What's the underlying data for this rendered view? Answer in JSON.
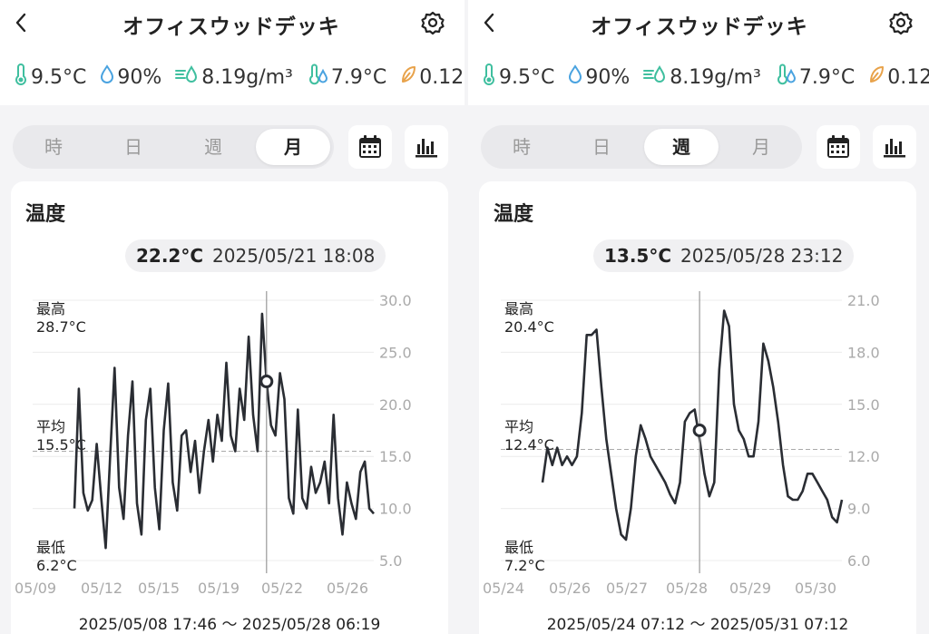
{
  "colors": {
    "accent": "#222222",
    "temp_icon": "#3fbf9f",
    "humidity_icon": "#4aa3e0",
    "vpd_icon": "#3fbf9f",
    "leaf_icon": "#e8a24a"
  },
  "panels": [
    {
      "header": {
        "back_icon": "chevron-left-icon",
        "title": "オフィスウッドデッキ",
        "settings_icon": "gear-icon"
      },
      "metrics": [
        {
          "icon": "thermometer-icon",
          "value": "9.5°C"
        },
        {
          "icon": "humidity-drop-icon",
          "value": "90%"
        },
        {
          "icon": "absolute-humidity-icon",
          "value": "8.19g/m³"
        },
        {
          "icon": "dew-point-icon",
          "value": "7.9°C"
        },
        {
          "icon": "leaf-icon",
          "value": "0.12"
        }
      ],
      "tabs": [
        {
          "label": "時"
        },
        {
          "label": "日"
        },
        {
          "label": "週"
        },
        {
          "label": "月"
        }
      ],
      "active_tab": 3,
      "calendar_icon": "calendar-icon",
      "stats_icon": "bar-chart-icon",
      "card": {
        "title": "温度",
        "tooltip": {
          "value": "22.2°C",
          "time": "2025/05/21 18:08"
        },
        "range_text": "2025/05/08 17:46 〜 2025/05/28 06:19",
        "max_label": "最高",
        "max_value": "28.7°C",
        "avg_label": "平均",
        "avg_value": "15.5°C",
        "min_label": "最低",
        "min_value": "6.2°C"
      },
      "chart_data": {
        "type": "line",
        "x_start": "2025/05/08 17:46",
        "x_end": "2025/05/28 06:19",
        "ylim": [
          5.0,
          30.0
        ],
        "yticks": [
          "30.0",
          "25.0",
          "20.0",
          "15.0",
          "10.0",
          "5.0"
        ],
        "xticks": [
          "05/09",
          "05/12",
          "05/15",
          "05/19",
          "05/22",
          "05/26"
        ],
        "max": 28.7,
        "avg": 15.5,
        "min": 6.2,
        "cursor": {
          "time": "2025/05/21 18:08",
          "value": 22.2
        },
        "series": [
          {
            "values": [
              10.0,
              21.5,
              11.5,
              9.8,
              10.8,
              16.2,
              11.0,
              6.2,
              15.0,
              23.5,
              12.0,
              9.0,
              17.0,
              22.2,
              10.5,
              7.5,
              18.5,
              21.5,
              12.0,
              8.0,
              17.5,
              22.0,
              12.5,
              9.8,
              17.0,
              17.5,
              13.5,
              16.5,
              11.5,
              15.5,
              18.5,
              14.5,
              19.0,
              16.5,
              24.0,
              17.0,
              15.5,
              21.5,
              18.5,
              26.5,
              19.0,
              15.5,
              28.7,
              22.2,
              18.0,
              17.0,
              23.0,
              20.5,
              11.0,
              9.5,
              19.5,
              11.0,
              10.0,
              14.0,
              11.5,
              12.5,
              14.5,
              10.5,
              19.0,
              11.0,
              7.5,
              12.5,
              10.5,
              9.0,
              13.5,
              14.5,
              10.0,
              9.5
            ]
          }
        ]
      }
    },
    {
      "header": {
        "back_icon": "chevron-left-icon",
        "title": "オフィスウッドデッキ",
        "settings_icon": "gear-icon"
      },
      "metrics": [
        {
          "icon": "thermometer-icon",
          "value": "9.5°C"
        },
        {
          "icon": "humidity-drop-icon",
          "value": "90%"
        },
        {
          "icon": "absolute-humidity-icon",
          "value": "8.19g/m³"
        },
        {
          "icon": "dew-point-icon",
          "value": "7.9°C"
        },
        {
          "icon": "leaf-icon",
          "value": "0.12"
        }
      ],
      "tabs": [
        {
          "label": "時"
        },
        {
          "label": "日"
        },
        {
          "label": "週"
        },
        {
          "label": "月"
        }
      ],
      "active_tab": 2,
      "calendar_icon": "calendar-icon",
      "stats_icon": "bar-chart-icon",
      "card": {
        "title": "温度",
        "tooltip": {
          "value": "13.5°C",
          "time": "2025/05/28 23:12"
        },
        "range_text": "2025/05/24 07:12 〜 2025/05/31 07:12",
        "max_label": "最高",
        "max_value": "20.4°C",
        "avg_label": "平均",
        "avg_value": "12.4°C",
        "min_label": "最低",
        "min_value": "7.2°C"
      },
      "chart_data": {
        "type": "line",
        "x_start": "2025/05/24 07:12",
        "x_end": "2025/05/31 07:12",
        "ylim": [
          6.0,
          21.0
        ],
        "yticks": [
          "21.0",
          "18.0",
          "15.0",
          "12.0",
          "9.0",
          "6.0"
        ],
        "xticks": [
          "05/24",
          "05/26",
          "05/27",
          "05/28",
          "05/29",
          "05/30"
        ],
        "max": 20.4,
        "avg": 12.4,
        "min": 7.2,
        "cursor": {
          "time": "2025/05/28 23:12",
          "value": 13.5
        },
        "series": [
          {
            "values": [
              10.5,
              12.5,
              11.5,
              12.5,
              11.5,
              12.0,
              11.5,
              12.0,
              14.5,
              19.0,
              19.0,
              19.3,
              16.0,
              13.0,
              11.0,
              9.0,
              7.5,
              7.2,
              9.0,
              12.0,
              13.8,
              13.0,
              12.0,
              11.5,
              11.0,
              10.5,
              9.8,
              9.3,
              10.5,
              14.0,
              14.5,
              14.7,
              13.0,
              11.0,
              9.7,
              10.5,
              17.0,
              20.4,
              19.5,
              15.0,
              13.5,
              13.0,
              12.0,
              12.0,
              14.0,
              18.5,
              17.5,
              16.0,
              14.0,
              11.5,
              9.7,
              9.5,
              9.5,
              10.0,
              11.0,
              11.0,
              10.5,
              10.0,
              9.5,
              8.5,
              8.2,
              9.5
            ]
          }
        ]
      }
    }
  ]
}
